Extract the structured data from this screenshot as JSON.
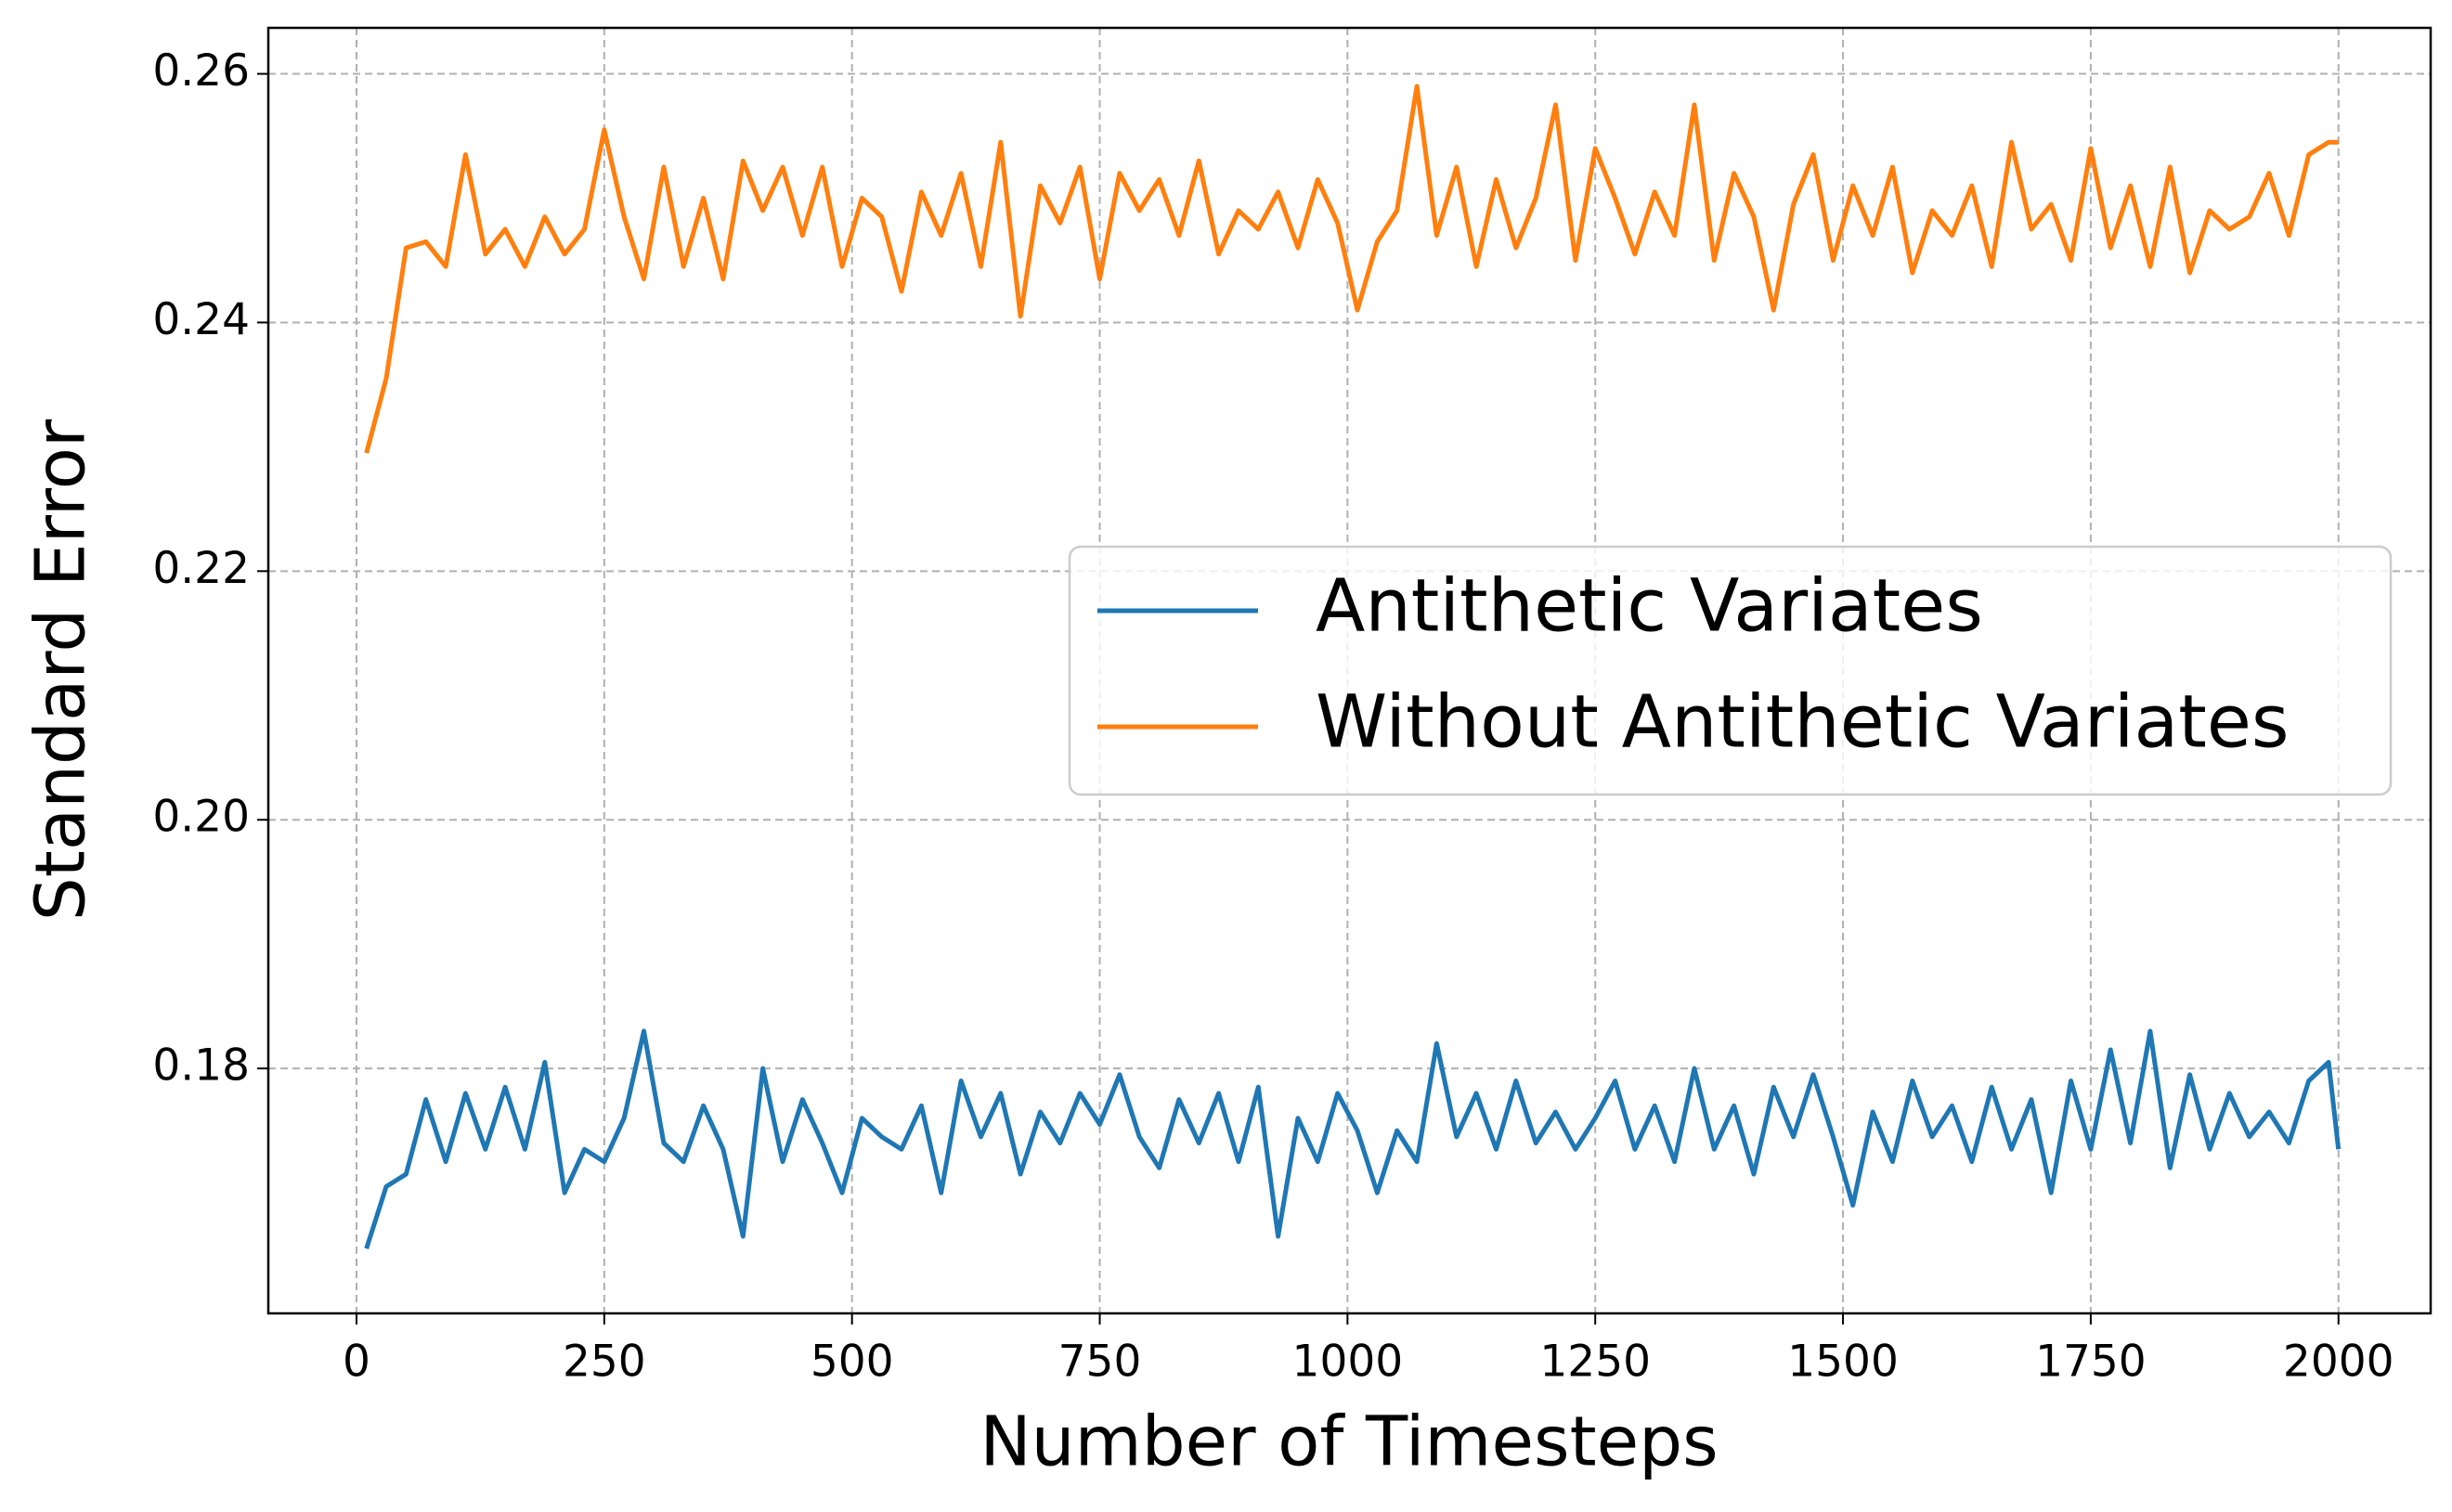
{
  "chart_data": {
    "type": "line",
    "x_label": "Number of Timesteps",
    "y_label": "Standard Error",
    "x": [
      10,
      30,
      50,
      70,
      90,
      110,
      130,
      150,
      170,
      190,
      210,
      230,
      250,
      270,
      290,
      310,
      330,
      350,
      370,
      390,
      410,
      430,
      450,
      470,
      490,
      510,
      530,
      550,
      570,
      590,
      610,
      630,
      650,
      670,
      690,
      710,
      730,
      750,
      770,
      790,
      810,
      830,
      850,
      870,
      890,
      910,
      930,
      950,
      970,
      990,
      1010,
      1030,
      1050,
      1070,
      1090,
      1110,
      1130,
      1150,
      1170,
      1190,
      1210,
      1230,
      1250,
      1270,
      1290,
      1310,
      1330,
      1350,
      1370,
      1390,
      1410,
      1430,
      1450,
      1470,
      1490,
      1510,
      1530,
      1550,
      1570,
      1590,
      1610,
      1630,
      1650,
      1670,
      1690,
      1710,
      1730,
      1750,
      1770,
      1790,
      1810,
      1830,
      1850,
      1870,
      1890,
      1910,
      1930,
      1950,
      1970,
      1990,
      2000
    ],
    "series": [
      {
        "name": "Antithetic Variates",
        "color": "#1f77b4",
        "values": [
          0.1655,
          0.1705,
          0.1715,
          0.1775,
          0.1725,
          0.178,
          0.1735,
          0.1785,
          0.1735,
          0.1805,
          0.17,
          0.1735,
          0.1725,
          0.176,
          0.183,
          0.174,
          0.1725,
          0.177,
          0.1735,
          0.1665,
          0.18,
          0.1725,
          0.1775,
          0.174,
          0.17,
          0.176,
          0.1745,
          0.1735,
          0.177,
          0.17,
          0.179,
          0.1745,
          0.178,
          0.1715,
          0.1765,
          0.174,
          0.178,
          0.1755,
          0.1795,
          0.1745,
          0.172,
          0.1775,
          0.174,
          0.178,
          0.1725,
          0.1785,
          0.1665,
          0.176,
          0.1725,
          0.178,
          0.175,
          0.17,
          0.175,
          0.1725,
          0.182,
          0.1745,
          0.178,
          0.1735,
          0.179,
          0.174,
          0.1765,
          0.1735,
          0.176,
          0.179,
          0.1735,
          0.177,
          0.1725,
          0.18,
          0.1735,
          0.177,
          0.1715,
          0.1785,
          0.1745,
          0.1795,
          0.1745,
          0.169,
          0.1765,
          0.1725,
          0.179,
          0.1745,
          0.177,
          0.1725,
          0.1785,
          0.1735,
          0.1775,
          0.17,
          0.179,
          0.1735,
          0.1815,
          0.174,
          0.183,
          0.172,
          0.1795,
          0.1735,
          0.178,
          0.1745,
          0.1765,
          0.174,
          0.179,
          0.1805,
          0.1735
        ]
      },
      {
        "name": "Without Antithetic Variates",
        "color": "#ff7f0e",
        "values": [
          0.2295,
          0.2355,
          0.246,
          0.2465,
          0.2445,
          0.2535,
          0.2455,
          0.2475,
          0.2445,
          0.2485,
          0.2455,
          0.2475,
          0.2555,
          0.2485,
          0.2435,
          0.2525,
          0.2445,
          0.25,
          0.2435,
          0.253,
          0.249,
          0.2525,
          0.247,
          0.2525,
          0.2445,
          0.25,
          0.2485,
          0.2425,
          0.2505,
          0.247,
          0.252,
          0.2445,
          0.2545,
          0.2405,
          0.251,
          0.248,
          0.2525,
          0.2435,
          0.252,
          0.249,
          0.2515,
          0.247,
          0.253,
          0.2455,
          0.249,
          0.2475,
          0.2505,
          0.246,
          0.2515,
          0.248,
          0.241,
          0.2465,
          0.249,
          0.259,
          0.247,
          0.2525,
          0.2445,
          0.2515,
          0.246,
          0.25,
          0.2575,
          0.245,
          0.254,
          0.25,
          0.2455,
          0.2505,
          0.247,
          0.2575,
          0.245,
          0.252,
          0.2485,
          0.241,
          0.2495,
          0.2535,
          0.245,
          0.251,
          0.247,
          0.2525,
          0.244,
          0.249,
          0.247,
          0.251,
          0.2445,
          0.2545,
          0.2475,
          0.2495,
          0.245,
          0.254,
          0.246,
          0.251,
          0.2445,
          0.2525,
          0.244,
          0.249,
          0.2475,
          0.2485,
          0.252,
          0.247,
          0.2535,
          0.2545,
          0.2545
        ]
      }
    ],
    "xlim": [
      -89,
      2093
    ],
    "xticks": [
      0,
      250,
      500,
      750,
      1000,
      1250,
      1500,
      1750,
      2000
    ],
    "ylim": [
      0.1603,
      0.2637
    ],
    "yticks": [
      0.18,
      {
        "value": 0.2,
        "label": "0.20"
      },
      0.22,
      0.24,
      0.26
    ],
    "grid": true,
    "legend": "center right"
  }
}
